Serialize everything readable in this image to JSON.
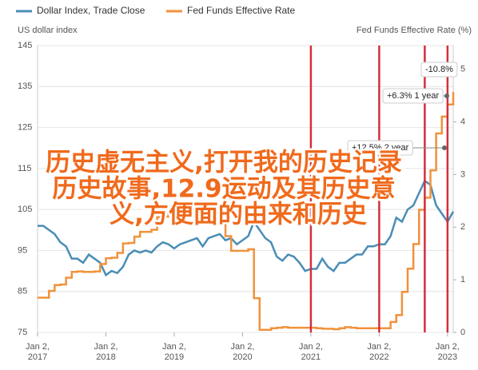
{
  "chart_data": {
    "type": "line",
    "legend": [
      "Dollar Index, Trade Close",
      "Fed Funds Effective Rate"
    ],
    "ylabel": "US dollar index",
    "y2label": "Fed Funds Effective Rate (%)",
    "x": [
      "2017-01",
      "2017-02",
      "2017-03",
      "2017-04",
      "2017-05",
      "2017-06",
      "2017-07",
      "2017-08",
      "2017-09",
      "2017-10",
      "2017-11",
      "2017-12",
      "2018-01",
      "2018-02",
      "2018-03",
      "2018-04",
      "2018-05",
      "2018-06",
      "2018-07",
      "2018-08",
      "2018-09",
      "2018-10",
      "2018-11",
      "2018-12",
      "2019-01",
      "2019-02",
      "2019-03",
      "2019-04",
      "2019-05",
      "2019-06",
      "2019-07",
      "2019-08",
      "2019-09",
      "2019-10",
      "2019-11",
      "2019-12",
      "2020-01",
      "2020-02",
      "2020-03",
      "2020-04",
      "2020-05",
      "2020-06",
      "2020-07",
      "2020-08",
      "2020-09",
      "2020-10",
      "2020-11",
      "2020-12",
      "2021-01",
      "2021-02",
      "2021-03",
      "2021-04",
      "2021-05",
      "2021-06",
      "2021-07",
      "2021-08",
      "2021-09",
      "2021-10",
      "2021-11",
      "2021-12",
      "2022-01",
      "2022-02",
      "2022-03",
      "2022-04",
      "2022-05",
      "2022-06",
      "2022-07",
      "2022-08",
      "2022-09",
      "2022-10",
      "2022-11",
      "2022-12",
      "2023-01",
      "2023-02"
    ],
    "series": [
      {
        "name": "Dollar Index, Trade Close",
        "color": "#4a8db5",
        "step": false,
        "values": [
          101,
          101,
          100,
          99,
          97,
          96,
          93,
          93,
          92,
          94,
          93,
          92,
          89,
          90,
          89.5,
          91,
          94,
          95,
          94.5,
          95,
          94.5,
          96,
          97,
          96.5,
          95.5,
          96.5,
          97,
          97.5,
          98,
          96,
          98,
          98.5,
          99,
          97.5,
          98,
          96.5,
          97.5,
          98.5,
          102,
          100,
          98,
          97,
          93.5,
          92.5,
          94,
          93.5,
          92,
          90,
          90.5,
          90.5,
          93,
          91,
          90,
          92,
          92,
          93,
          94,
          94,
          96,
          96,
          96.5,
          96.5,
          98.5,
          103,
          102,
          105,
          106,
          109,
          112,
          111,
          106,
          104,
          102,
          104.5
        ]
      },
      {
        "name": "Fed Funds Effective Rate",
        "color": "#f0923c",
        "axis": "y2",
        "step": true,
        "values": [
          0.66,
          0.66,
          0.79,
          0.9,
          0.91,
          1.04,
          1.15,
          1.16,
          1.15,
          1.15,
          1.16,
          1.3,
          1.41,
          1.42,
          1.51,
          1.69,
          1.7,
          1.82,
          1.91,
          1.91,
          1.95,
          2.19,
          2.2,
          2.27,
          2.4,
          2.4,
          2.41,
          2.42,
          2.39,
          2.38,
          2.4,
          2.13,
          2.04,
          1.83,
          1.55,
          1.55,
          1.55,
          1.58,
          0.65,
          0.05,
          0.05,
          0.08,
          0.09,
          0.1,
          0.09,
          0.09,
          0.09,
          0.09,
          0.09,
          0.08,
          0.07,
          0.07,
          0.06,
          0.08,
          0.1,
          0.09,
          0.08,
          0.08,
          0.08,
          0.08,
          0.08,
          0.08,
          0.2,
          0.33,
          0.77,
          1.21,
          1.68,
          2.33,
          2.56,
          3.08,
          3.78,
          4.1,
          4.33,
          4.57
        ]
      }
    ],
    "xlim": [
      "2017-01",
      "2023-02"
    ],
    "xticks": [
      {
        "value": "2017-01",
        "label": "Jan 2, 2017"
      },
      {
        "value": "2018-01",
        "label": "Jan 2, 2018"
      },
      {
        "value": "2019-01",
        "label": "Jan 2, 2019"
      },
      {
        "value": "2020-01",
        "label": "Jan 2, 2020"
      },
      {
        "value": "2021-01",
        "label": "Jan 2, 2021"
      },
      {
        "value": "2022-01",
        "label": "Jan 2, 2022"
      },
      {
        "value": "2023-01",
        "label": "Jan 2, 2023"
      }
    ],
    "ylim": [
      75,
      145
    ],
    "yticks": [
      75,
      85,
      95,
      105,
      115,
      125,
      135,
      145
    ],
    "y2lim": [
      0,
      5.45
    ],
    "y2ticks": [
      0,
      1,
      2,
      3,
      4,
      5
    ],
    "grid": true,
    "markers": [
      "2021-01",
      "2022-01",
      "2022-09",
      "2023-01"
    ],
    "marker_color": "#d32f3c",
    "annotations": [
      "-10.8%",
      "+6.3% 1 year",
      "+12.5% 2 year"
    ],
    "overlay_text": [
      "历史虚无主义,打开我的历史记录",
      "历史故事,12.9运动及其历史意",
      "义,方便面的由来和历史"
    ]
  }
}
